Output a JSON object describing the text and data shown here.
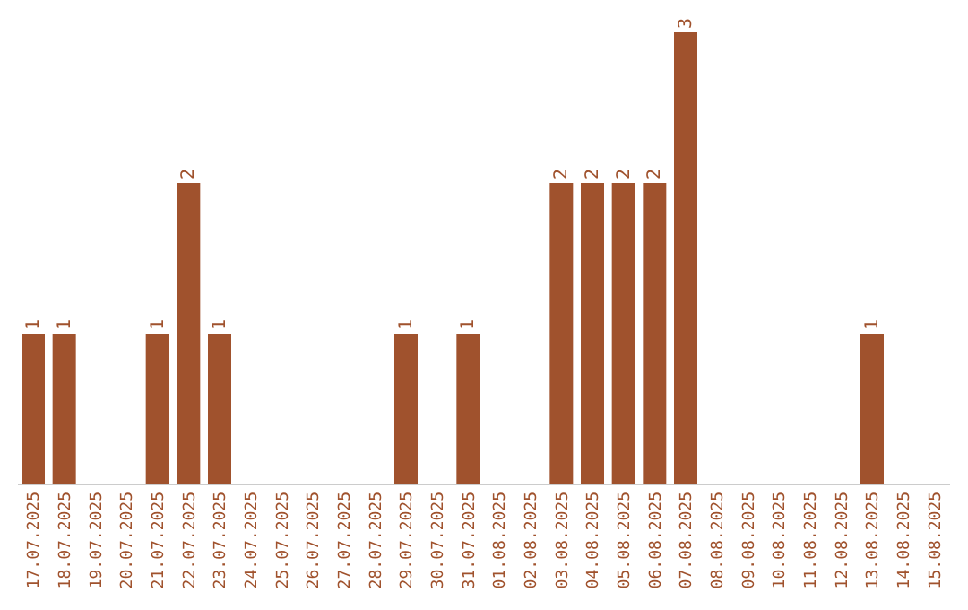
{
  "chart_data": {
    "type": "bar",
    "categories": [
      "17.07.2025",
      "18.07.2025",
      "19.07.2025",
      "20.07.2025",
      "21.07.2025",
      "22.07.2025",
      "23.07.2025",
      "24.07.2025",
      "25.07.2025",
      "26.07.2025",
      "27.07.2025",
      "28.07.2025",
      "29.07.2025",
      "30.07.2025",
      "31.07.2025",
      "01.08.2025",
      "02.08.2025",
      "03.08.2025",
      "04.08.2025",
      "05.08.2025",
      "06.08.2025",
      "07.08.2025",
      "08.08.2025",
      "09.08.2025",
      "10.08.2025",
      "11.08.2025",
      "12.08.2025",
      "13.08.2025",
      "14.08.2025",
      "15.08.2025"
    ],
    "values": [
      1,
      1,
      0,
      0,
      1,
      2,
      1,
      0,
      0,
      0,
      0,
      0,
      1,
      0,
      1,
      0,
      0,
      2,
      2,
      2,
      2,
      3,
      0,
      0,
      0,
      0,
      0,
      1,
      0,
      0
    ],
    "value_labels": [
      "1",
      "1",
      null,
      null,
      "1",
      "2",
      "1",
      null,
      null,
      null,
      null,
      null,
      "1",
      null,
      "1",
      null,
      null,
      "2",
      "2",
      "2",
      "2",
      "3",
      null,
      null,
      null,
      null,
      null,
      "1",
      null,
      null
    ],
    "color": "#a0522d",
    "grid": false,
    "legend": false
  }
}
